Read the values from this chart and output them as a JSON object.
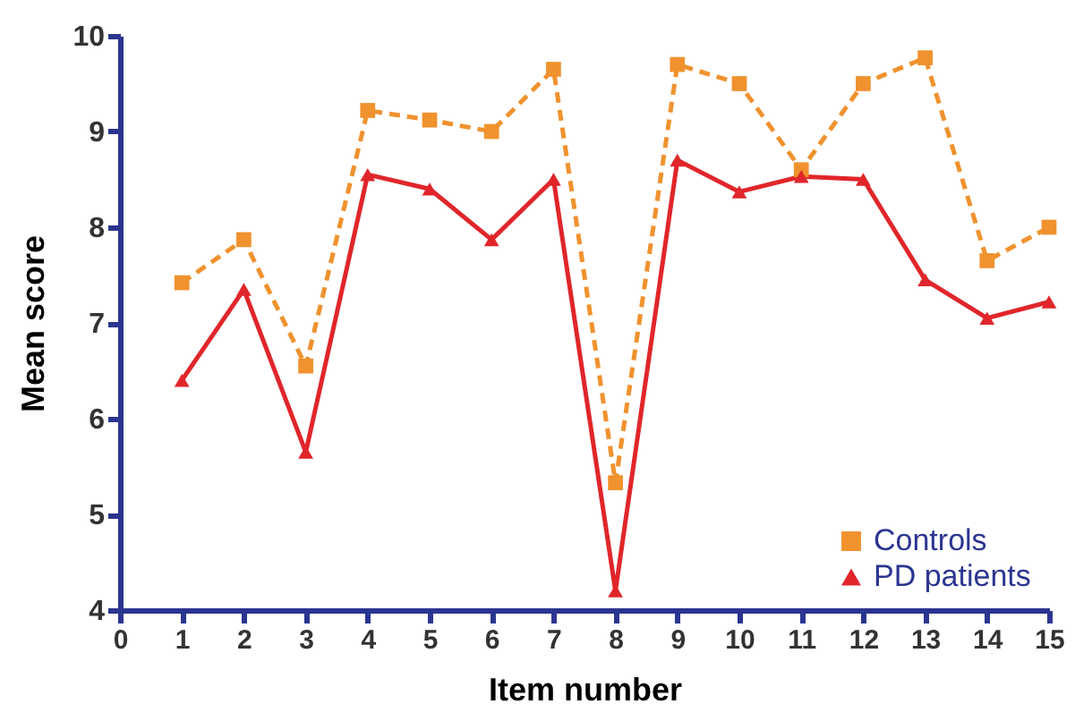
{
  "chart_data": {
    "type": "line",
    "xlabel": "Item number",
    "ylabel": "Mean score",
    "x": [
      1,
      2,
      3,
      4,
      5,
      6,
      7,
      8,
      9,
      10,
      11,
      12,
      13,
      14,
      15
    ],
    "xlim": [
      0,
      15
    ],
    "xticks": [
      0,
      1,
      2,
      3,
      4,
      5,
      6,
      7,
      8,
      9,
      10,
      11,
      12,
      13,
      14,
      15
    ],
    "ylim": [
      4,
      10
    ],
    "yticks": [
      4,
      5,
      6,
      7,
      8,
      9,
      10
    ],
    "grid": false,
    "legend": "bottom right",
    "series": [
      {
        "name": "Controls",
        "color": "#f0922e",
        "marker": "square",
        "line_style": "dashed",
        "values": [
          7.42,
          7.87,
          6.55,
          9.22,
          9.12,
          9.0,
          9.65,
          5.33,
          9.7,
          9.5,
          8.6,
          9.5,
          9.77,
          7.65,
          8.0
        ]
      },
      {
        "name": "PD patients",
        "color": "#e0262b",
        "marker": "triangle",
        "line_style": "solid",
        "values": [
          6.4,
          7.35,
          5.65,
          8.55,
          8.4,
          7.87,
          8.5,
          4.2,
          8.7,
          8.37,
          8.53,
          8.5,
          7.45,
          7.05,
          7.22
        ]
      }
    ]
  }
}
